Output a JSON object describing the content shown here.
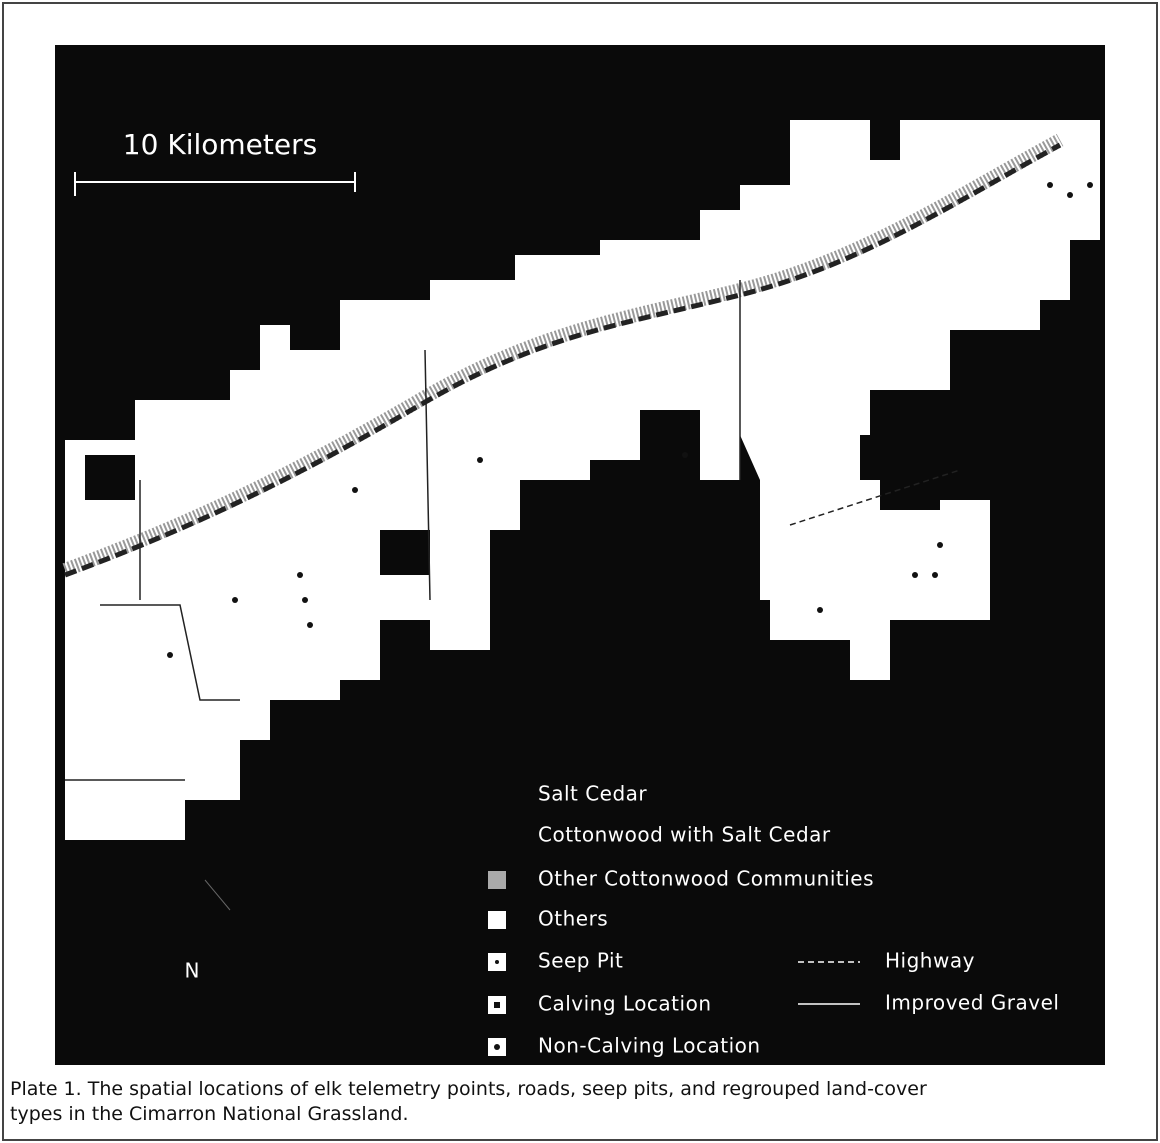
{
  "map": {
    "scale_label": "10 Kilometers",
    "north_label": "N",
    "legend": [
      "Salt Cedar",
      "Cottonwood with Salt Cedar",
      "Other Cottonwood Communities",
      "Others",
      "Seep Pit",
      "Calving Location",
      "Non-Calving Location"
    ],
    "line_legend": [
      "Highway",
      "Improved Gravel"
    ]
  },
  "caption": {
    "lines": [
      "Plate 1. The spatial locations of elk telemetry points, roads, seep pits, and regrouped land-cover",
      "types in the Cimarron National Grassland."
    ]
  }
}
